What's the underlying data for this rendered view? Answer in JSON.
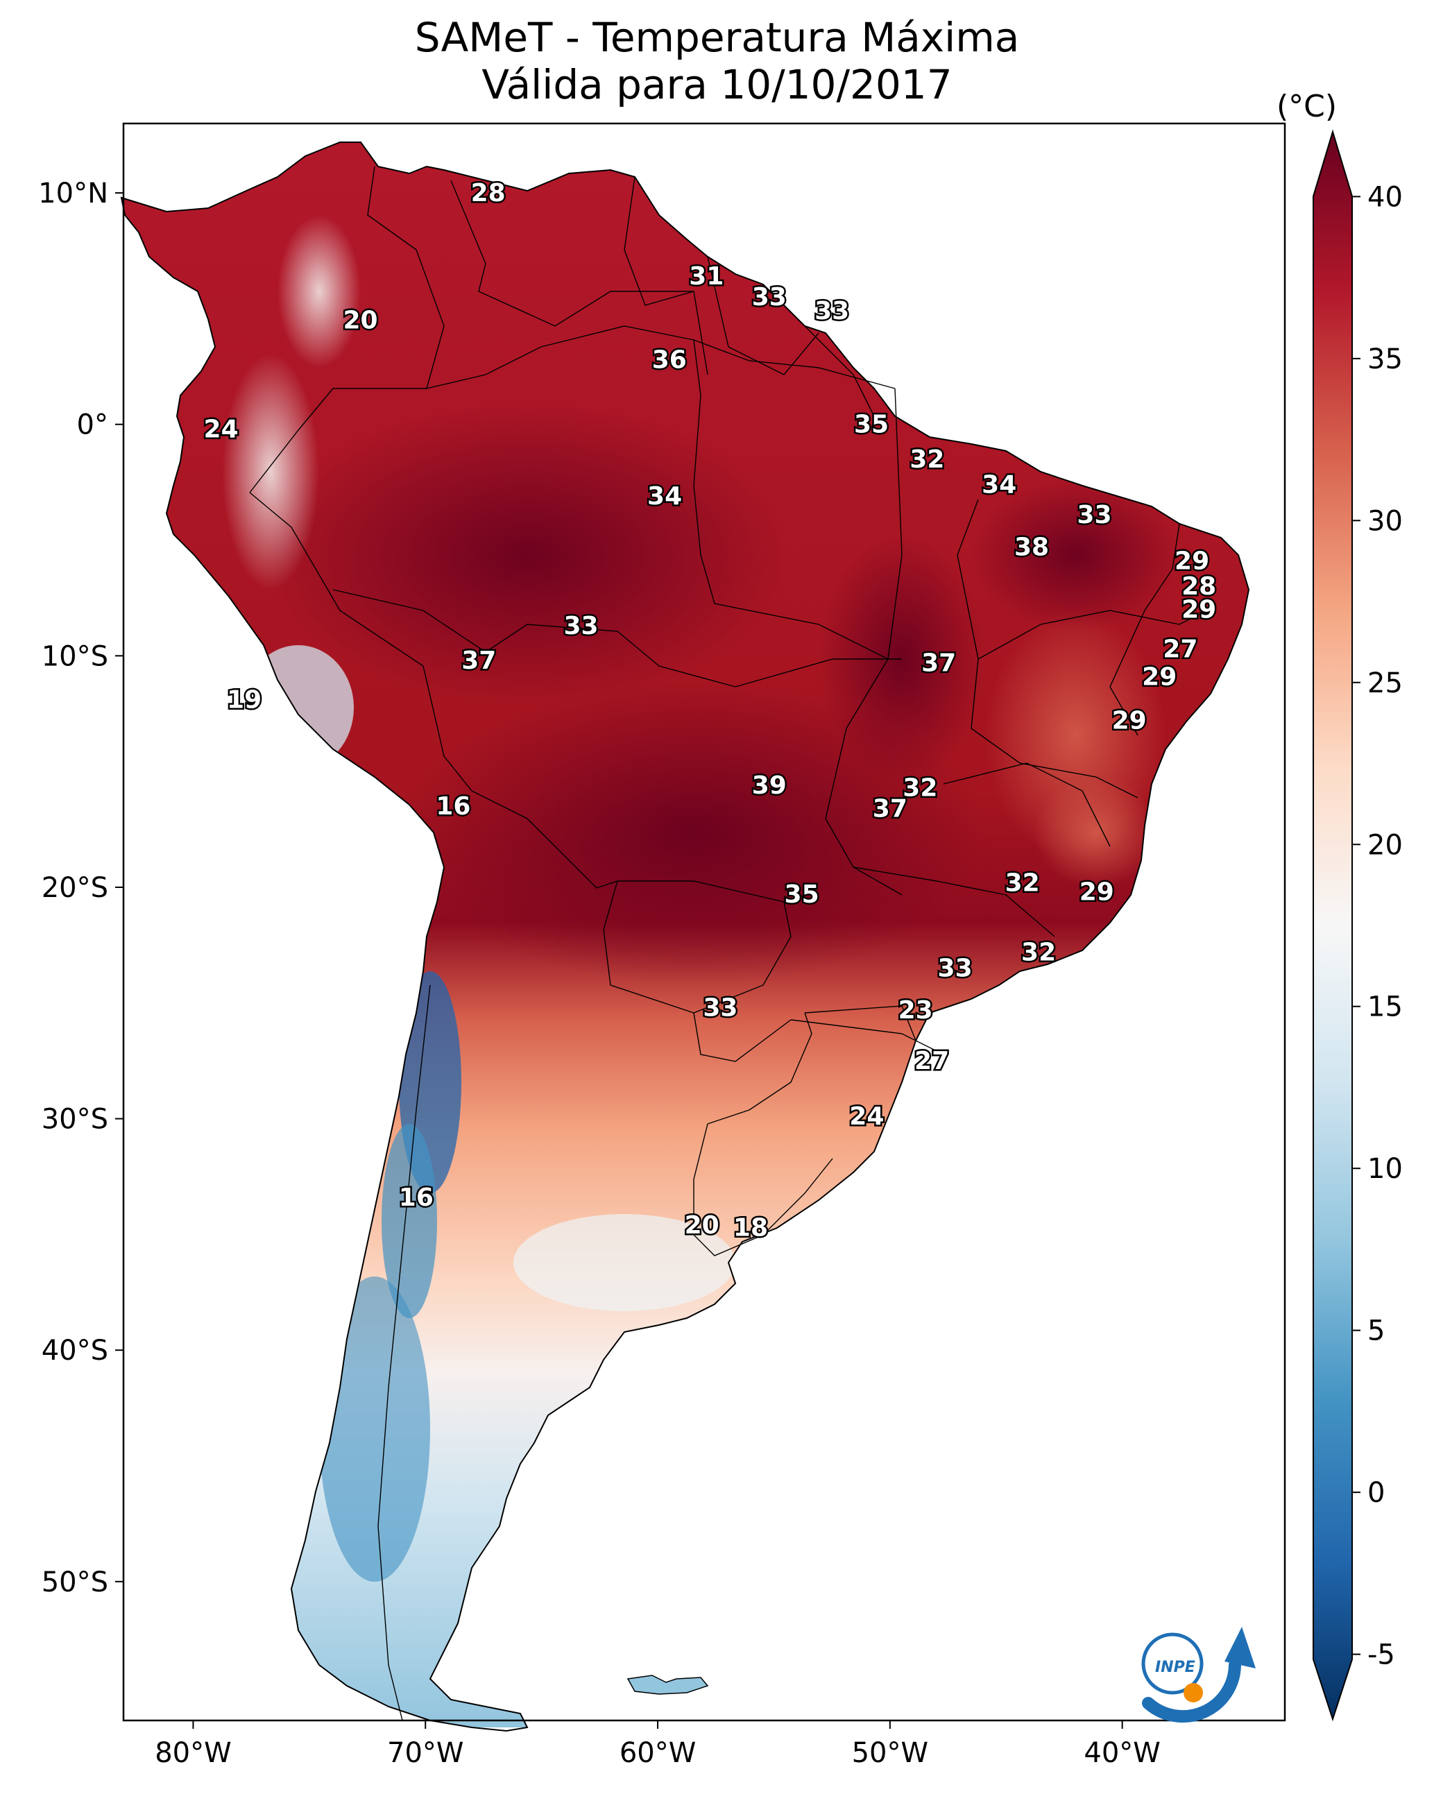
{
  "title": {
    "line1": "SAMeT - Temperatura Máxima",
    "line2": "Válida para 10/10/2017"
  },
  "map_data": {
    "lon_range": [
      -83,
      -33
    ],
    "lat_range": [
      -56,
      13
    ],
    "lon_ticks": [
      {
        "value": -80,
        "label": "80°W"
      },
      {
        "value": -70,
        "label": "70°W"
      },
      {
        "value": -60,
        "label": "60°W"
      },
      {
        "value": -50,
        "label": "50°W"
      },
      {
        "value": -40,
        "label": "40°W"
      }
    ],
    "lat_ticks": [
      {
        "value": 10,
        "label": "10°N"
      },
      {
        "value": 0,
        "label": "0°"
      },
      {
        "value": -10,
        "label": "10°S"
      },
      {
        "value": -20,
        "label": "20°S"
      },
      {
        "value": -30,
        "label": "30°S"
      },
      {
        "value": -40,
        "label": "40°S"
      },
      {
        "value": -50,
        "label": "50°S"
      }
    ],
    "station_values": [
      {
        "lon": -67.3,
        "lat": 10.0,
        "label": "28"
      },
      {
        "lon": -57.9,
        "lat": 6.4,
        "label": "31"
      },
      {
        "lon": -55.2,
        "lat": 5.5,
        "label": "33"
      },
      {
        "lon": -52.5,
        "lat": 4.9,
        "label": "33"
      },
      {
        "lon": -59.5,
        "lat": 2.8,
        "label": "36"
      },
      {
        "lon": -72.8,
        "lat": 4.5,
        "label": "20"
      },
      {
        "lon": -78.8,
        "lat": -0.2,
        "label": "24"
      },
      {
        "lon": -50.8,
        "lat": 0.0,
        "label": "35"
      },
      {
        "lon": -48.4,
        "lat": -1.5,
        "label": "32"
      },
      {
        "lon": -59.7,
        "lat": -3.1,
        "label": "34"
      },
      {
        "lon": -45.3,
        "lat": -2.6,
        "label": "34"
      },
      {
        "lon": -41.2,
        "lat": -3.9,
        "label": "33"
      },
      {
        "lon": -43.9,
        "lat": -5.3,
        "label": "38"
      },
      {
        "lon": -37.0,
        "lat": -5.9,
        "label": "29"
      },
      {
        "lon": -36.7,
        "lat": -7.0,
        "label": "28"
      },
      {
        "lon": -36.7,
        "lat": -8.0,
        "label": "29"
      },
      {
        "lon": -63.3,
        "lat": -8.7,
        "label": "33"
      },
      {
        "lon": -67.7,
        "lat": -10.2,
        "label": "37"
      },
      {
        "lon": -47.9,
        "lat": -10.3,
        "label": "37"
      },
      {
        "lon": -37.5,
        "lat": -9.7,
        "label": "27"
      },
      {
        "lon": -38.4,
        "lat": -10.9,
        "label": "29"
      },
      {
        "lon": -39.7,
        "lat": -12.8,
        "label": "29"
      },
      {
        "lon": -77.8,
        "lat": -11.9,
        "label": "19"
      },
      {
        "lon": -55.2,
        "lat": -15.6,
        "label": "39"
      },
      {
        "lon": -48.7,
        "lat": -15.7,
        "label": "32"
      },
      {
        "lon": -50.0,
        "lat": -16.6,
        "label": "37"
      },
      {
        "lon": -68.8,
        "lat": -16.5,
        "label": "16"
      },
      {
        "lon": -44.3,
        "lat": -19.8,
        "label": "32"
      },
      {
        "lon": -41.1,
        "lat": -20.2,
        "label": "29"
      },
      {
        "lon": -53.8,
        "lat": -20.3,
        "label": "35"
      },
      {
        "lon": -43.6,
        "lat": -22.8,
        "label": "32"
      },
      {
        "lon": -47.2,
        "lat": -23.5,
        "label": "33"
      },
      {
        "lon": -57.3,
        "lat": -25.2,
        "label": "33"
      },
      {
        "lon": -48.9,
        "lat": -25.3,
        "label": "23"
      },
      {
        "lon": -48.2,
        "lat": -27.5,
        "label": "27"
      },
      {
        "lon": -51.0,
        "lat": -29.9,
        "label": "24"
      },
      {
        "lon": -70.4,
        "lat": -33.4,
        "label": "16"
      },
      {
        "lon": -58.1,
        "lat": -34.6,
        "label": "20"
      },
      {
        "lon": -56.0,
        "lat": -34.7,
        "label": "18"
      }
    ]
  },
  "colorbar": {
    "unit": "(°C)",
    "min": -7,
    "max": 42,
    "ticks": [
      {
        "value": 40,
        "label": "40"
      },
      {
        "value": 35,
        "label": "35"
      },
      {
        "value": 30,
        "label": "30"
      },
      {
        "value": 25,
        "label": "25"
      },
      {
        "value": 20,
        "label": "20"
      },
      {
        "value": 15,
        "label": "15"
      },
      {
        "value": 10,
        "label": "10"
      },
      {
        "value": 5,
        "label": "5"
      },
      {
        "value": 0,
        "label": "0"
      },
      {
        "value": -5,
        "label": "-5"
      }
    ],
    "colors": [
      "#053061",
      "#2166ac",
      "#4393c3",
      "#92c5de",
      "#d1e5f0",
      "#f7f7f7",
      "#fddbc7",
      "#f4a582",
      "#d6604d",
      "#b2182b",
      "#67001f"
    ]
  },
  "logo": {
    "text": "INPE",
    "accent": "#f28c00",
    "brand": "#1f6fb5"
  }
}
